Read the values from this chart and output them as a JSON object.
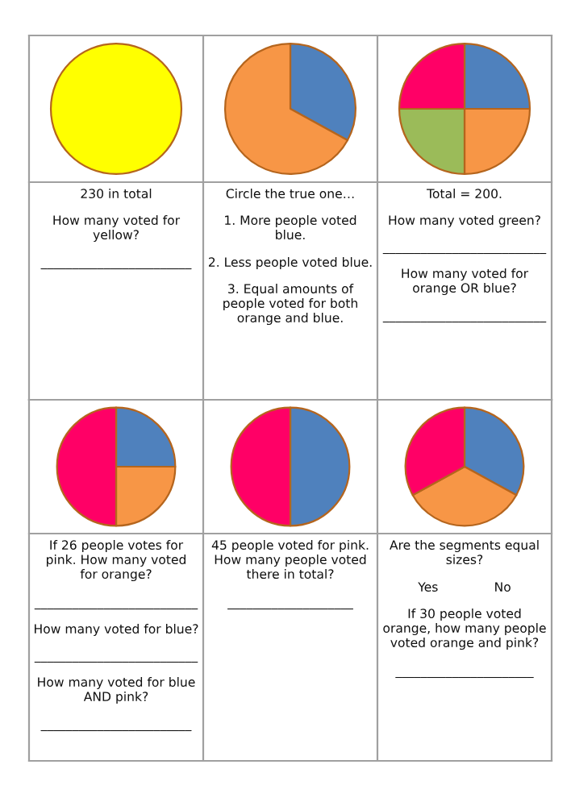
{
  "chart_data": [
    {
      "type": "pie",
      "categories": [
        null
      ],
      "values": [
        100
      ],
      "colors": [
        "#ffff00"
      ],
      "annotations": [
        "230 in total",
        "How many voted for\nyellow?",
        "________________________"
      ]
    },
    {
      "type": "pie",
      "categories": [
        null,
        null
      ],
      "values": [
        33,
        67
      ],
      "colors": [
        "#4f81bd",
        "#f79646"
      ],
      "annotations": [
        "Circle the true one…",
        "1. More people voted\nblue.",
        "2. Less people voted blue.",
        "3. Equal amounts of\npeople voted for both\norange and blue."
      ]
    },
    {
      "type": "pie",
      "categories": [
        null,
        null,
        null,
        null
      ],
      "values": [
        25,
        25,
        25,
        25
      ],
      "colors": [
        "#4f81bd",
        "#f79646",
        "#9bbb59",
        "#ff0066"
      ],
      "annotations": [
        "Total = 200.",
        "How many voted green?",
        "__________________________",
        "How many voted for\norange OR blue?",
        "__________________________"
      ]
    },
    {
      "type": "pie",
      "categories": [
        null,
        null,
        null
      ],
      "values": [
        25,
        25,
        50
      ],
      "colors": [
        "#4f81bd",
        "#f79646",
        "#ff0066"
      ],
      "annotations": [
        "If 26 people votes for\npink. How many voted\nfor orange?",
        "__________________________",
        "How many voted for blue?",
        "__________________________",
        "How many voted for blue\nAND pink?",
        "________________________"
      ]
    },
    {
      "type": "pie",
      "categories": [
        null,
        null
      ],
      "values": [
        50,
        50
      ],
      "colors": [
        "#4f81bd",
        "#ff0066"
      ],
      "annotations": [
        "45 people voted for pink.\nHow many people voted\nthere in total?",
        "____________________"
      ]
    },
    {
      "type": "pie",
      "categories": [
        null,
        null,
        null
      ],
      "values": [
        33,
        34,
        33
      ],
      "colors": [
        "#4f81bd",
        "#f79646",
        "#ff0066"
      ],
      "annotations": [
        "Are the segments equal\nsizes?",
        "Yes              No",
        "If 30 people voted\norange, how many people\nvoted orange and pink?",
        "______________________"
      ]
    }
  ]
}
